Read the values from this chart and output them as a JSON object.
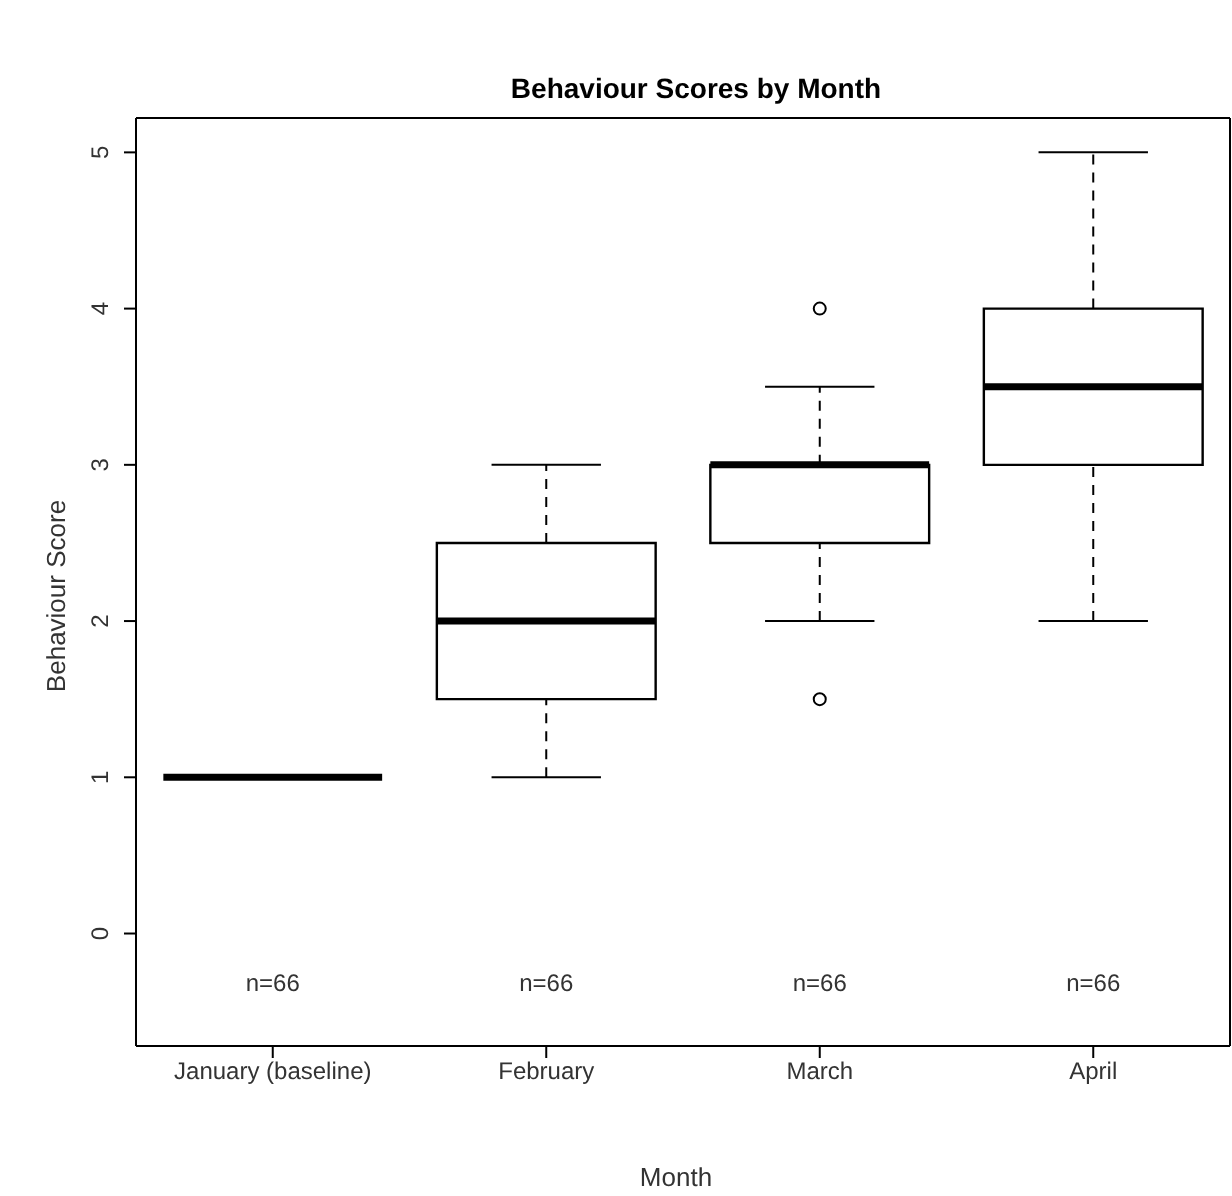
{
  "chart_data": {
    "type": "box",
    "title": "Behaviour Scores by Month",
    "xlabel": "Month",
    "ylabel": "Behaviour Score",
    "categories": [
      "January (baseline)",
      "February",
      "March",
      "April"
    ],
    "boxes": [
      {
        "low": 1,
        "q1": 1,
        "median": 1,
        "q3": 1,
        "high": 1
      },
      {
        "low": 1,
        "q1": 1.5,
        "median": 2,
        "q3": 2.5,
        "high": 3
      },
      {
        "low": 2,
        "q1": 2.5,
        "median": 3,
        "q3": 3,
        "high": 3.5,
        "outliers": [
          4,
          1.5
        ]
      },
      {
        "low": 2,
        "q1": 3,
        "median": 3.5,
        "q3": 4,
        "high": 5
      }
    ],
    "color": "#000000",
    "ylim": [
      -0.72,
      5.22
    ],
    "yticks": [
      0,
      1,
      2,
      3,
      4,
      5
    ],
    "annotations": [
      "n=66",
      "n=66",
      "n=66",
      "n=66"
    ]
  }
}
